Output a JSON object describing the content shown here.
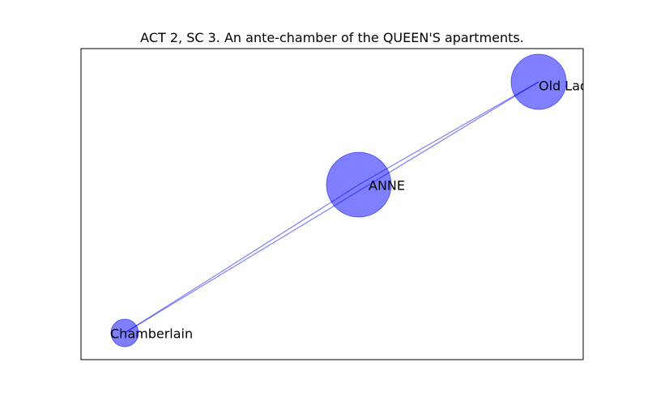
{
  "figure": {
    "title": "ACT 2, SC 3. An ante-chamber of the QUEEN'S apartments."
  },
  "graph": {
    "node_color": "#0000ff",
    "node_alpha": 0.5,
    "edge_color": "#0000ff",
    "edge_alpha": 0.5,
    "nodes": [
      {
        "id": "old-lady",
        "label": "Old Lady",
        "weight": 3
      },
      {
        "id": "anne",
        "label": "ANNE",
        "weight": 4
      },
      {
        "id": "chamberlain",
        "label": "Chamberlain",
        "weight": 1
      }
    ],
    "edges": [
      {
        "source": "old-lady",
        "target": "chamberlain"
      },
      {
        "source": "anne",
        "target": "chamberlain"
      },
      {
        "source": "anne",
        "target": "old-lady"
      }
    ]
  }
}
